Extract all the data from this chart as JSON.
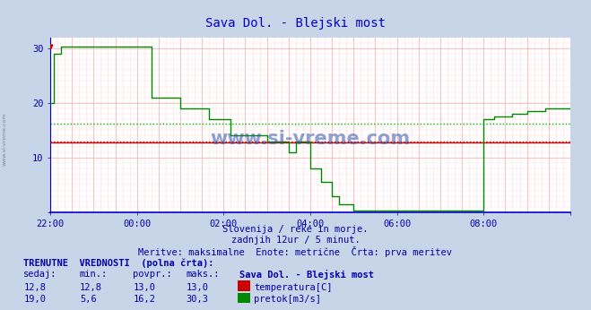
{
  "title": "Sava Dol. - Blejski most",
  "title_color": "#0000cc",
  "fig_bg_color": "#c8d4e8",
  "plot_bg_color": "#ffffff",
  "temp_color": "#cc0000",
  "flow_color": "#008800",
  "temp_avg": 13.0,
  "flow_avg": 16.2,
  "grid_major_color": "#ffaaaa",
  "grid_minor_color": "#ffdddd",
  "flow_avg_color": "#00bb00",
  "temp_avg_color": "#cc0000",
  "spine_bottom_color": "#0000cc",
  "spine_left_color": "#0000cc",
  "arrow_color": "#cc0000",
  "watermark": "www.si-vreme.com",
  "watermark_color": "#3355aa",
  "left_label": "www.si-vreme.com",
  "left_label_color": "#7788aa",
  "subtitle1": "Slovenija / reke in morje.",
  "subtitle2": "zadnjih 12ur / 5 minut.",
  "subtitle3": "Meritve: maksimalne  Enote: metrične  Črta: prva meritev",
  "footer_title": "TRENUTNE  VREDNOSTI  (polna črta):",
  "col_sedaj": "sedaj:",
  "col_min": "min.:",
  "col_povpr": "povpr.:",
  "col_maks": "maks.:",
  "col_station": "Sava Dol. - Blejski most",
  "temp_sedaj": "12,8",
  "temp_min": "12,8",
  "temp_povpr": "13,0",
  "temp_maks": "13,0",
  "flow_sedaj": "19,0",
  "flow_min": "5,6",
  "flow_povpr": "16,2",
  "flow_maks": "30,3",
  "temp_label": "temperatura[C]",
  "flow_label": "pretok[m3/s]",
  "ylim": [
    0,
    32
  ],
  "xlim": [
    0,
    144
  ],
  "ytick_vals": [
    10,
    20,
    30
  ],
  "xtick_positions": [
    0,
    24,
    48,
    72,
    96,
    120,
    144
  ],
  "xtick_labels": [
    "22:00",
    "00:00",
    "02:00",
    "04:00",
    "06:00",
    "08:00",
    ""
  ]
}
